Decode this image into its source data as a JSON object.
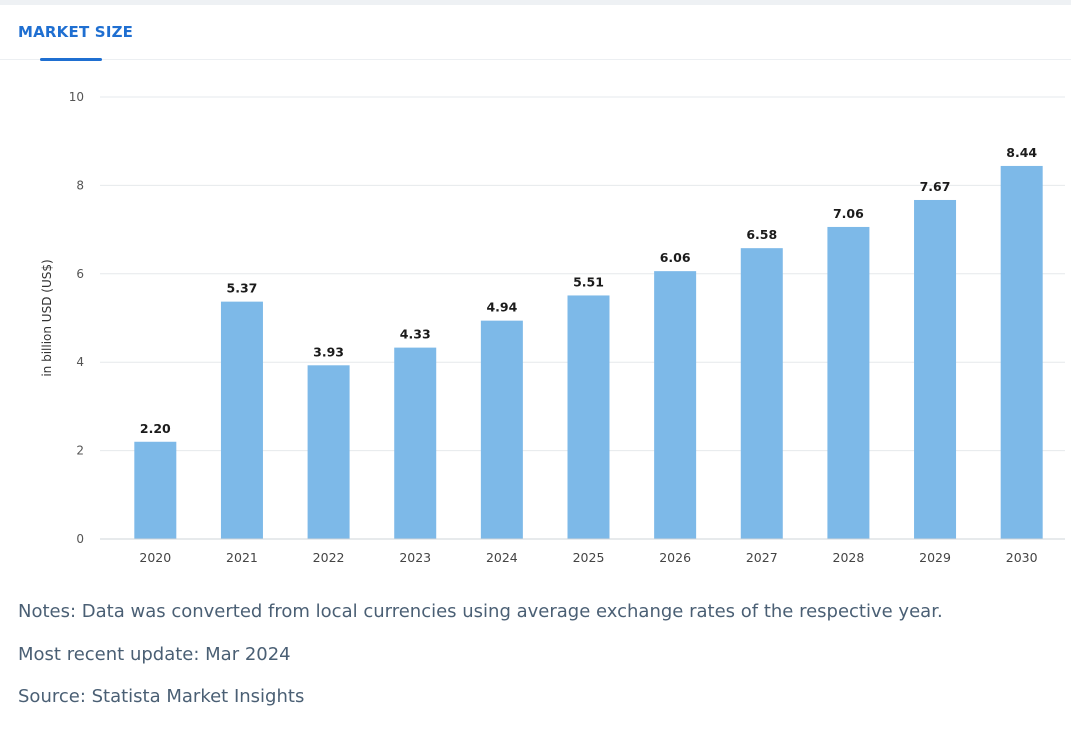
{
  "tab": {
    "label": "MARKET SIZE"
  },
  "colors": {
    "bar": "#7db9e8",
    "accent": "#1f6fd1",
    "grid": "#e6e9ec"
  },
  "chart_data": {
    "type": "bar",
    "categories": [
      "2020",
      "2021",
      "2022",
      "2023",
      "2024",
      "2025",
      "2026",
      "2027",
      "2028",
      "2029",
      "2030"
    ],
    "values": [
      2.2,
      5.37,
      3.93,
      4.33,
      4.94,
      5.51,
      6.06,
      6.58,
      7.06,
      7.67,
      8.44
    ],
    "value_labels": [
      "2.20",
      "5.37",
      "3.93",
      "4.33",
      "4.94",
      "5.51",
      "6.06",
      "6.58",
      "7.06",
      "7.67",
      "8.44"
    ],
    "ylabel": "in billion USD (US$)",
    "ylim": [
      0,
      10
    ],
    "yticks": [
      "0",
      "2",
      "4",
      "6",
      "8",
      "10"
    ],
    "grid": true
  },
  "notes": {
    "note": "Notes: Data was converted from local currencies using average exchange rates of the respective year.",
    "update": "Most recent update: Mar 2024",
    "source": "Source: Statista Market Insights"
  }
}
